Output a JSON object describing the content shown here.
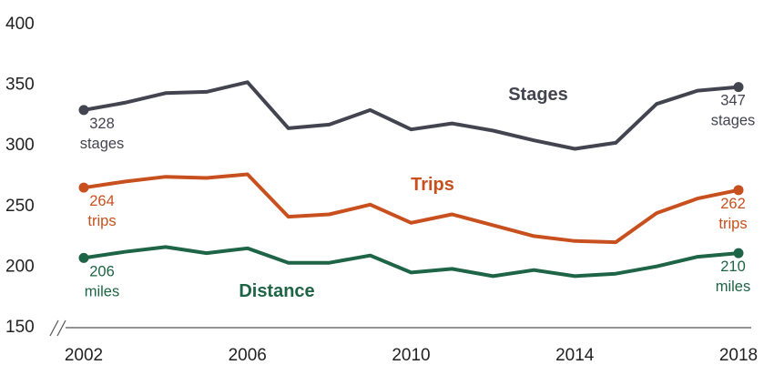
{
  "chart_data": {
    "type": "line",
    "x": [
      2002,
      2003,
      2004,
      2005,
      2006,
      2007,
      2008,
      2009,
      2010,
      2011,
      2012,
      2013,
      2014,
      2015,
      2016,
      2017,
      2018
    ],
    "xticks": [
      "2002",
      "2006",
      "2010",
      "2014",
      "2018"
    ],
    "yticks": [
      "400",
      "350",
      "300",
      "250",
      "200",
      "150"
    ],
    "ylim": [
      150,
      400
    ],
    "xlim": [
      2002,
      2018
    ],
    "axis_break": true,
    "grid": false,
    "series": [
      {
        "name": "Stages",
        "color": "#444450",
        "values": [
          328,
          334,
          342,
          343,
          351,
          313,
          316,
          328,
          312,
          317,
          311,
          303,
          296,
          301,
          333,
          344,
          347
        ],
        "start_label": [
          "328",
          "stages"
        ],
        "end_label": [
          "347",
          "stages"
        ]
      },
      {
        "name": "Trips",
        "color": "#c8501e",
        "values": [
          264,
          269,
          273,
          272,
          275,
          240,
          242,
          250,
          235,
          242,
          233,
          224,
          220,
          219,
          243,
          255,
          262
        ],
        "start_label": [
          "264",
          "trips"
        ],
        "end_label": [
          "262",
          "trips"
        ]
      },
      {
        "name": "Distance",
        "color": "#1e6446",
        "values": [
          206,
          211,
          215,
          210,
          214,
          202,
          202,
          208,
          194,
          197,
          191,
          196,
          191,
          193,
          199,
          207,
          210
        ],
        "start_label": [
          "206",
          "miles"
        ],
        "end_label": [
          "210",
          "miles"
        ]
      }
    ]
  }
}
